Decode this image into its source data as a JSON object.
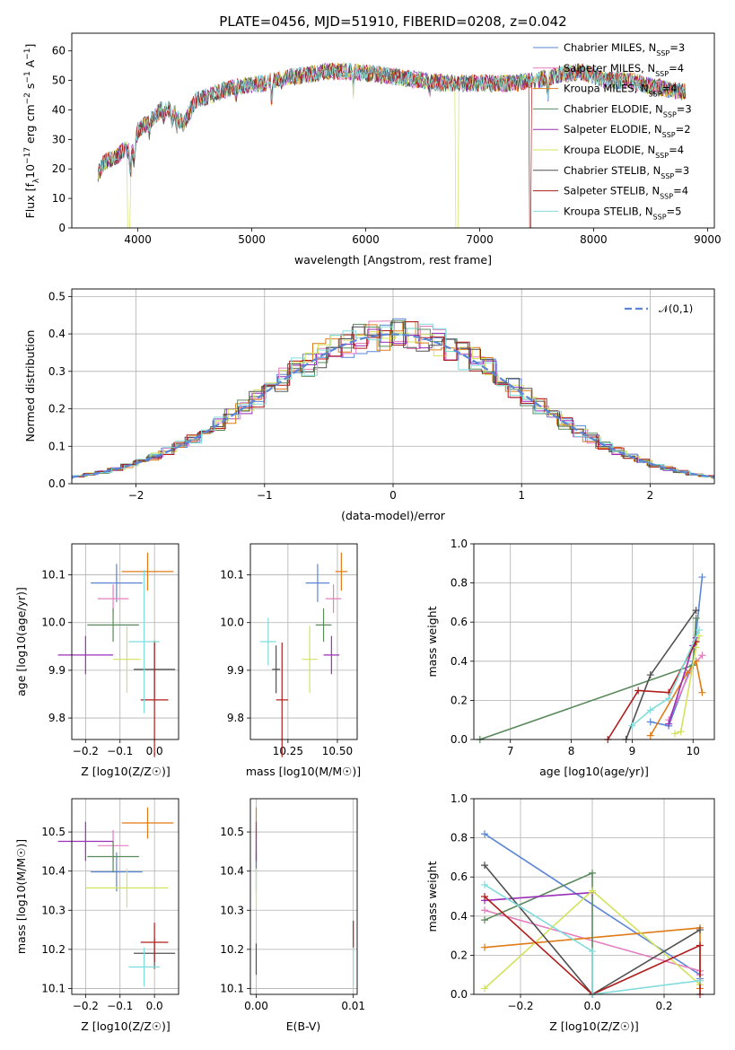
{
  "figure": {
    "title": "PLATE=0456, MJD=51910, FIBERID=0208, z=0.042",
    "series_colors": [
      "#5b86d6",
      "#e57fbf",
      "#e07b18",
      "#5a8a5c",
      "#9a2fb8",
      "#d3e35d",
      "#505050",
      "#b01c1c",
      "#80dcdc"
    ]
  },
  "chart_data": [
    {
      "id": "spectrum",
      "type": "line",
      "title": "PLATE=0456, MJD=51910, FIBERID=0208, z=0.042",
      "xlabel": "wavelength [Angstrom, rest frame]",
      "ylabel": "Flux [f_λ 10^-17 erg cm^-2 s^-1 A^-1]",
      "xlim": [
        3420,
        9060
      ],
      "ylim": [
        0,
        66
      ],
      "xticks": [
        4000,
        5000,
        6000,
        7000,
        8000,
        9000
      ],
      "yticks": [
        0,
        10,
        20,
        30,
        40,
        50,
        60
      ],
      "grid": false,
      "legend_position": "top-right",
      "continuum": {
        "x": [
          3650,
          3700,
          3800,
          3900,
          3950,
          4000,
          4100,
          4200,
          4300,
          4400,
          4500,
          4700,
          4900,
          5100,
          5300,
          5500,
          5700,
          5900,
          6100,
          6300,
          6500,
          6700,
          6900,
          7100,
          7300,
          7500,
          7700,
          7900,
          8100,
          8300,
          8500,
          8800
        ],
        "y": [
          18,
          22,
          24,
          27,
          25,
          33,
          36,
          40,
          40,
          35,
          43,
          46,
          48,
          49,
          51,
          52,
          53,
          53,
          52,
          51,
          50,
          49,
          49,
          49,
          49,
          50,
          52,
          53,
          50,
          50,
          48,
          46
        ]
      },
      "series": [
        {
          "name": "Chabrier MILES",
          "nssp": "3"
        },
        {
          "name": "Salpeter MILES",
          "nssp": "4"
        },
        {
          "name": "Kroupa MILES",
          "nssp": "4"
        },
        {
          "name": "Chabrier ELODIE",
          "nssp": "3"
        },
        {
          "name": "Salpeter ELODIE",
          "nssp": "2"
        },
        {
          "name": "Kroupa ELODIE",
          "nssp": "4"
        },
        {
          "name": "Chabrier STELIB",
          "nssp": "3"
        },
        {
          "name": "Salpeter STELIB",
          "nssp": "4"
        },
        {
          "name": "Kroupa STELIB",
          "nssp": "5"
        }
      ],
      "cutoffs": [
        {
          "series": 5,
          "x": 3920
        },
        {
          "series": 5,
          "x": 6800
        },
        {
          "series": 7,
          "x": 7440
        }
      ]
    },
    {
      "id": "residuals",
      "type": "step",
      "xlabel": "(data-model)/error",
      "ylabel": "Normed distribution",
      "xlim": [
        -2.5,
        2.5
      ],
      "ylim": [
        0,
        0.52
      ],
      "xticks": [
        -2,
        -1,
        0,
        1,
        2
      ],
      "yticks": [
        0.0,
        0.1,
        0.2,
        0.3,
        0.4,
        0.5
      ],
      "grid": true,
      "legend": "𝒩(0,1)",
      "legend_position": "top-right"
    },
    {
      "id": "age_vs_Z",
      "type": "errorbar",
      "xlabel": "Z [log10(Z/Z☉)]",
      "ylabel": "age [log10(age/yr)]",
      "xlim": [
        -0.24,
        0.07
      ],
      "ylim": [
        9.755,
        10.165
      ],
      "xticks": [
        -0.2,
        -0.1,
        0.0
      ],
      "yticks": [
        9.8,
        9.9,
        10.0,
        10.1
      ],
      "grid": true,
      "points": [
        {
          "x": -0.11,
          "y": 10.083,
          "xerr": 0.075,
          "yerr": 0.04
        },
        {
          "x": -0.12,
          "y": 10.05,
          "xerr": 0.045,
          "yerr": 0.03
        },
        {
          "x": -0.02,
          "y": 10.107,
          "xerr": 0.075,
          "yerr": 0.04
        },
        {
          "x": -0.12,
          "y": 9.995,
          "xerr": 0.075,
          "yerr": 0.035
        },
        {
          "x": -0.2,
          "y": 9.932,
          "xerr": 0.08,
          "yerr": 0.04
        },
        {
          "x": -0.08,
          "y": 9.923,
          "xerr": 0.04,
          "yerr": 0.07
        },
        {
          "x": 0.0,
          "y": 9.902,
          "xerr": 0.06,
          "yerr": 0.06
        },
        {
          "x": 0.0,
          "y": 9.838,
          "xerr": 0.04,
          "yerr": 0.12
        },
        {
          "x": -0.03,
          "y": 9.96,
          "xerr": 0.045,
          "yerr": 0.15
        }
      ]
    },
    {
      "id": "age_vs_mass",
      "type": "errorbar",
      "xlabel": "mass [log10(M/M☉)]",
      "ylim": [
        9.755,
        10.165
      ],
      "xlim": [
        10.06,
        10.6
      ],
      "xticks": [
        10.25,
        10.5
      ],
      "yticks": [
        9.8,
        9.9,
        10.0,
        10.1
      ],
      "grid": true,
      "points": [
        {
          "x": 10.4,
          "y": 10.083,
          "xerr": 0.06,
          "yerr": 0.04
        },
        {
          "x": 10.48,
          "y": 10.05,
          "xerr": 0.04,
          "yerr": 0.03
        },
        {
          "x": 10.52,
          "y": 10.107,
          "xerr": 0.03,
          "yerr": 0.04
        },
        {
          "x": 10.43,
          "y": 9.995,
          "xerr": 0.04,
          "yerr": 0.035
        },
        {
          "x": 10.47,
          "y": 9.932,
          "xerr": 0.04,
          "yerr": 0.04
        },
        {
          "x": 10.36,
          "y": 9.923,
          "xerr": 0.04,
          "yerr": 0.07
        },
        {
          "x": 10.19,
          "y": 9.902,
          "xerr": 0.02,
          "yerr": 0.05
        },
        {
          "x": 10.22,
          "y": 9.838,
          "xerr": 0.03,
          "yerr": 0.12
        },
        {
          "x": 10.15,
          "y": 9.96,
          "xerr": 0.04,
          "yerr": 0.05
        }
      ]
    },
    {
      "id": "massweight_vs_age",
      "type": "line",
      "xlabel": "age [log10(age/yr)]",
      "ylabel": "mass weight",
      "xlim": [
        6.4,
        10.35
      ],
      "ylim": [
        0,
        1
      ],
      "xticks": [
        7,
        8,
        9,
        10
      ],
      "yticks": [
        0.0,
        0.2,
        0.4,
        0.6,
        0.8,
        1.0
      ],
      "grid": true,
      "series": [
        {
          "x": [
            9.3,
            9.6,
            10.0,
            10.15
          ],
          "y": [
            0.09,
            0.07,
            0.4,
            0.83
          ]
        },
        {
          "x": [
            9.6,
            10.0,
            10.15
          ],
          "y": [
            0.1,
            0.38,
            0.43
          ]
        },
        {
          "x": [
            9.3,
            9.9,
            10.05,
            10.15
          ],
          "y": [
            0.02,
            0.34,
            0.4,
            0.24
          ]
        },
        {
          "x": [
            6.5,
            10.0,
            10.05
          ],
          "y": [
            0.0,
            0.38,
            0.62
          ]
        },
        {
          "x": [
            9.6,
            10.0,
            10.05
          ],
          "y": [
            0.08,
            0.48,
            0.52
          ]
        },
        {
          "x": [
            9.7,
            9.8,
            10.05,
            10.1
          ],
          "y": [
            0.03,
            0.04,
            0.47,
            0.53
          ]
        },
        {
          "x": [
            8.9,
            9.3,
            10.05
          ],
          "y": [
            0.0,
            0.33,
            0.66
          ]
        },
        {
          "x": [
            8.6,
            9.1,
            9.6,
            10.05
          ],
          "y": [
            0.0,
            0.25,
            0.24,
            0.5
          ]
        },
        {
          "x": [
            9.0,
            9.3,
            9.6,
            10.1
          ],
          "y": [
            0.07,
            0.15,
            0.21,
            0.56
          ]
        }
      ]
    },
    {
      "id": "mass_vs_Z",
      "type": "errorbar",
      "xlabel": "Z [log10(Z/Z☉)]",
      "ylabel": "mass [log10(M/M☉)]",
      "xlim": [
        -0.24,
        0.07
      ],
      "ylim": [
        10.085,
        10.585
      ],
      "xticks": [
        -0.2,
        -0.1,
        0.0
      ],
      "yticks": [
        10.1,
        10.2,
        10.3,
        10.4,
        10.5
      ],
      "grid": true,
      "points": [
        {
          "x": -0.11,
          "y": 10.398,
          "xerr": 0.075,
          "yerr": 0.05
        },
        {
          "x": -0.12,
          "y": 10.465,
          "xerr": 0.045,
          "yerr": 0.04
        },
        {
          "x": -0.02,
          "y": 10.523,
          "xerr": 0.075,
          "yerr": 0.04
        },
        {
          "x": -0.12,
          "y": 10.437,
          "xerr": 0.075,
          "yerr": 0.04
        },
        {
          "x": -0.2,
          "y": 10.476,
          "xerr": 0.08,
          "yerr": 0.05
        },
        {
          "x": -0.08,
          "y": 10.357,
          "xerr": 0.12,
          "yerr": 0.05
        },
        {
          "x": 0.0,
          "y": 10.19,
          "xerr": 0.06,
          "yerr": 0.04
        },
        {
          "x": 0.0,
          "y": 10.218,
          "xerr": 0.04,
          "yerr": 0.05
        },
        {
          "x": -0.03,
          "y": 10.155,
          "xerr": 0.045,
          "yerr": 0.05
        }
      ]
    },
    {
      "id": "mass_vs_ebv",
      "type": "errorbar",
      "xlabel": "E(B-V)",
      "xlim": [
        -0.0006,
        0.0104
      ],
      "ylim": [
        10.085,
        10.585
      ],
      "xticks": [
        0.0,
        0.01
      ],
      "yticks": [
        10.1,
        10.2,
        10.3,
        10.4,
        10.5
      ],
      "grid": true,
      "points": [
        {
          "x": 0.0,
          "y": 10.398,
          "xerr": 0,
          "yerr": 0.05
        },
        {
          "x": 0.0,
          "y": 10.465,
          "xerr": 0,
          "yerr": 0.04
        },
        {
          "x": 0.0,
          "y": 10.523,
          "xerr": 0,
          "yerr": 0.04
        },
        {
          "x": 0.0,
          "y": 10.437,
          "xerr": 0,
          "yerr": 0.04
        },
        {
          "x": 0.0,
          "y": 10.476,
          "xerr": 0,
          "yerr": 0.05
        },
        {
          "x": 0.0,
          "y": 10.357,
          "xerr": 0,
          "yerr": 0.05
        },
        {
          "x": 0.0,
          "y": 10.175,
          "xerr": 0,
          "yerr": 0.04
        },
        {
          "x": 0.01,
          "y": 10.238,
          "xerr": 0,
          "yerr": 0.035
        },
        {
          "x": 0.01,
          "y": 10.155,
          "xerr": 0,
          "yerr": 0.05
        }
      ]
    },
    {
      "id": "massweight_vs_Z",
      "type": "line",
      "xlabel": "Z [log10(Z/Z☉)]",
      "ylabel": "mass weight",
      "xlim": [
        -0.33,
        0.34
      ],
      "ylim": [
        0,
        1
      ],
      "xticks": [
        -0.2,
        0.0,
        0.2
      ],
      "yticks": [
        0.0,
        0.2,
        0.4,
        0.6,
        0.8,
        1.0
      ],
      "grid": true,
      "series": [
        {
          "x": [
            -0.3,
            0.3,
            0.3
          ],
          "y": [
            0.82,
            0.1,
            0.08
          ]
        },
        {
          "x": [
            -0.3,
            0.3,
            0.3
          ],
          "y": [
            0.43,
            0.12,
            0.1
          ]
        },
        {
          "x": [
            -0.3,
            0.3,
            0.3
          ],
          "y": [
            0.24,
            0.34,
            0.03
          ]
        },
        {
          "x": [
            -0.3,
            0.0,
            0.0
          ],
          "y": [
            0.38,
            0.62,
            0.0
          ]
        },
        {
          "x": [
            -0.3,
            0.0
          ],
          "y": [
            0.48,
            0.52
          ]
        },
        {
          "x": [
            -0.3,
            0.0,
            0.3
          ],
          "y": [
            0.03,
            0.53,
            0.05
          ]
        },
        {
          "x": [
            -0.3,
            0.0,
            0.3
          ],
          "y": [
            0.66,
            0.0,
            0.33
          ]
        },
        {
          "x": [
            -0.3,
            0.0,
            0.3,
            0.3
          ],
          "y": [
            0.5,
            0.0,
            0.25,
            0.0
          ]
        },
        {
          "x": [
            -0.3,
            0.0,
            0.0,
            0.3
          ],
          "y": [
            0.56,
            0.22,
            0.0,
            0.07
          ]
        }
      ]
    }
  ]
}
